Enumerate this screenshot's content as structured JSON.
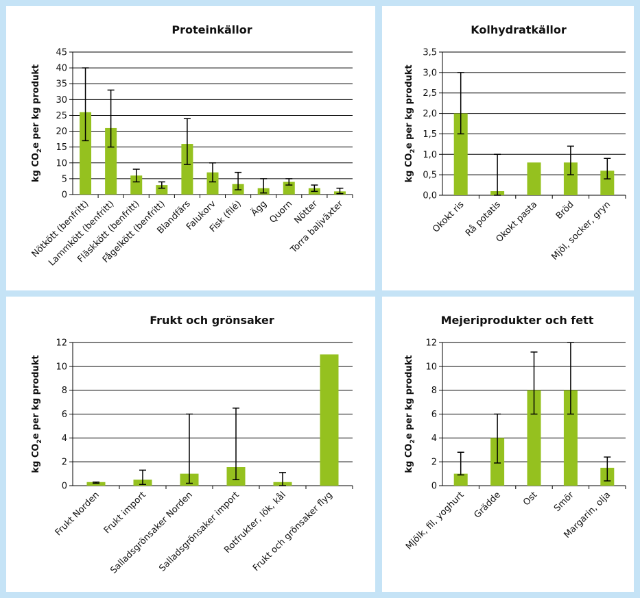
{
  "colors": {
    "background": "#c5e3f6",
    "panel": "#ffffff",
    "bar": "#95c11f",
    "grid": "#000000"
  },
  "chart_data": [
    {
      "type": "bar",
      "title": "Proteinkällor",
      "ylabel_parts": [
        "kg CO",
        "2",
        "e per kg produkt"
      ],
      "ylim": [
        0,
        45
      ],
      "yticks": [
        "0",
        "5",
        "10",
        "15",
        "20",
        "25",
        "30",
        "35",
        "40",
        "45"
      ],
      "categories": [
        "Nötkött (benfritt)",
        "Lammkött (benfritt)",
        "Fläskkött (benfritt)",
        "Fågelkött (benfritt)",
        "Blandfärs",
        "Falukorv",
        "Fisk (filé)",
        "Ägg",
        "Quorn",
        "Nötter",
        "Torra baljväxter"
      ],
      "values": [
        26,
        21,
        6,
        3,
        16,
        7,
        3.3,
        2,
        4,
        2,
        1
      ],
      "error_low": [
        17,
        15,
        4,
        2,
        9.5,
        4,
        1.5,
        0.5,
        3,
        1,
        0.3
      ],
      "error_high": [
        40,
        33,
        8,
        4,
        24,
        10,
        7,
        5,
        5,
        3,
        2
      ],
      "grid": true
    },
    {
      "type": "bar",
      "title": "Kolhydratkällor",
      "ylabel_parts": [
        "kg CO",
        "2",
        "e per kg produkt"
      ],
      "ylim": [
        0,
        3.5
      ],
      "yticks": [
        "0,0",
        "0,5",
        "1,0",
        "1,5",
        "2,0",
        "2,5",
        "3,0",
        "3,5"
      ],
      "categories": [
        "Okokt ris",
        "Rå potatis",
        "Okokt pasta",
        "Bröd",
        "Mjöl, socker, gryn"
      ],
      "values": [
        2.0,
        0.1,
        0.8,
        0.8,
        0.6
      ],
      "error_low": [
        1.5,
        0.0,
        null,
        0.5,
        0.4
      ],
      "error_high": [
        3.0,
        1.0,
        null,
        1.2,
        0.9
      ],
      "grid": true
    },
    {
      "type": "bar",
      "title": "Frukt och grönsaker",
      "ylabel_parts": [
        "kg CO",
        "2",
        "e per kg produkt"
      ],
      "ylim": [
        0,
        12
      ],
      "yticks": [
        "0",
        "2",
        "4",
        "6",
        "8",
        "10",
        "12"
      ],
      "categories": [
        "Frukt Norden",
        "Frukt import",
        "Salladsgrönsaker Norden",
        "Salladsgrönsaker import",
        "Rotfrukter, lök, kål",
        "Frukt och grönsaker flyg"
      ],
      "values": [
        0.3,
        0.5,
        1.0,
        1.55,
        0.3,
        11
      ],
      "error_low": [
        0.2,
        0.1,
        0.2,
        0.5,
        0.0,
        null
      ],
      "error_high": [
        0.3,
        1.3,
        6.0,
        6.5,
        1.1,
        null
      ],
      "grid": true
    },
    {
      "type": "bar",
      "title": "Mejeriprodukter och fett",
      "ylabel_parts": [
        "kg CO",
        "2",
        "e per kg produkt"
      ],
      "ylim": [
        0,
        12
      ],
      "yticks": [
        "0",
        "2",
        "4",
        "6",
        "8",
        "10",
        "12"
      ],
      "categories": [
        "Mjölk, fil, yoghurt",
        "Grädde",
        "Ost",
        "Smör",
        "Margarin, olja"
      ],
      "values": [
        1.0,
        4.0,
        8.0,
        8.0,
        1.5
      ],
      "error_low": [
        0.9,
        1.9,
        6.0,
        6.0,
        0.4
      ],
      "error_high": [
        2.8,
        6.0,
        11.2,
        12.0,
        2.4
      ],
      "grid": true
    }
  ]
}
